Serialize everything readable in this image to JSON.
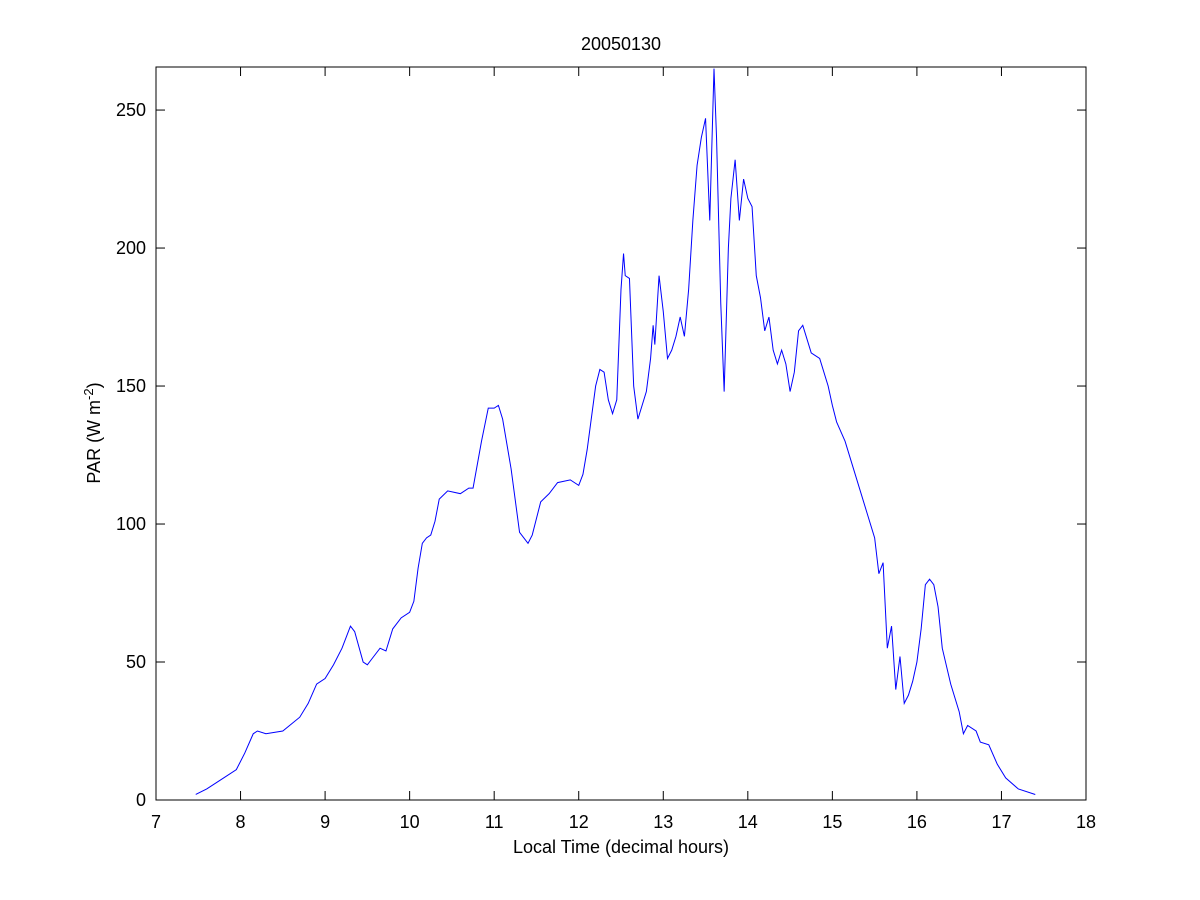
{
  "chart_data": {
    "type": "line",
    "title": "20050130",
    "x_label": "Local Time (decimal hours)",
    "y_label": {
      "text": "PAR (W m",
      "superscript": "-2",
      "end": ")"
    },
    "xlim": [
      7,
      18
    ],
    "xticks": [
      7,
      8,
      9,
      10,
      11,
      12,
      13,
      14,
      15,
      16,
      17,
      18
    ],
    "ylim": [
      0,
      265.6
    ],
    "yticks": [
      0,
      50,
      100,
      150,
      200,
      250
    ],
    "grid": false,
    "series": [
      {
        "color": "#0000ff",
        "x": [
          7.47,
          7.6,
          7.8,
          7.95,
          8.05,
          8.15,
          8.2,
          8.3,
          8.5,
          8.7,
          8.8,
          8.9,
          9.0,
          9.1,
          9.2,
          9.3,
          9.35,
          9.45,
          9.5,
          9.55,
          9.65,
          9.72,
          9.8,
          9.9,
          10.0,
          10.05,
          10.1,
          10.15,
          10.2,
          10.25,
          10.3,
          10.35,
          10.45,
          10.6,
          10.7,
          10.75,
          10.85,
          10.93,
          11.0,
          11.05,
          11.1,
          11.2,
          11.3,
          11.4,
          11.45,
          11.55,
          11.65,
          11.75,
          11.9,
          12.0,
          12.05,
          12.1,
          12.2,
          12.25,
          12.3,
          12.35,
          12.4,
          12.45,
          12.5,
          12.53,
          12.55,
          12.6,
          12.65,
          12.7,
          12.8,
          12.85,
          12.88,
          12.9,
          12.95,
          13.0,
          13.05,
          13.1,
          13.15,
          13.2,
          13.25,
          13.3,
          13.35,
          13.4,
          13.45,
          13.5,
          13.55,
          13.6,
          13.63,
          13.68,
          13.72,
          13.77,
          13.8,
          13.85,
          13.9,
          13.95,
          14.0,
          14.05,
          14.1,
          14.15,
          14.2,
          14.25,
          14.3,
          14.35,
          14.4,
          14.45,
          14.5,
          14.55,
          14.6,
          14.65,
          14.75,
          14.85,
          14.95,
          15.0,
          15.05,
          15.15,
          15.25,
          15.4,
          15.5,
          15.55,
          15.6,
          15.65,
          15.7,
          15.75,
          15.8,
          15.85,
          15.9,
          15.95,
          16.0,
          16.05,
          16.1,
          16.15,
          16.2,
          16.25,
          16.3,
          16.4,
          16.5,
          16.55,
          16.6,
          16.7,
          16.75,
          16.85,
          16.95,
          17.05,
          17.2,
          17.4
        ],
        "values": [
          2,
          4,
          8,
          11,
          17,
          24,
          25,
          24,
          25,
          30,
          35,
          42,
          44,
          49,
          55,
          63,
          61,
          50,
          49,
          51,
          55,
          54,
          62,
          66,
          68,
          72,
          84,
          93,
          95,
          96,
          101,
          109,
          112,
          111,
          113,
          113,
          130,
          142,
          142,
          143,
          138,
          120,
          97,
          93,
          96,
          108,
          111,
          115,
          116,
          114,
          118,
          127,
          150,
          156,
          155,
          145,
          140,
          145,
          185,
          198,
          190,
          189,
          150,
          138,
          148,
          160,
          172,
          165,
          190,
          177,
          160,
          163,
          168,
          175,
          168,
          185,
          210,
          230,
          240,
          247,
          210,
          265,
          240,
          180,
          148,
          200,
          218,
          232,
          210,
          225,
          218,
          215,
          190,
          182,
          170,
          175,
          163,
          158,
          163,
          158,
          148,
          155,
          170,
          172,
          162,
          160,
          150,
          143,
          137,
          130,
          120,
          105,
          95,
          82,
          86,
          55,
          63,
          40,
          52,
          35,
          38,
          43,
          50,
          62,
          78,
          80,
          78,
          70,
          55,
          42,
          32,
          24,
          27,
          25,
          21,
          20,
          13,
          8,
          4,
          2
        ]
      }
    ]
  }
}
